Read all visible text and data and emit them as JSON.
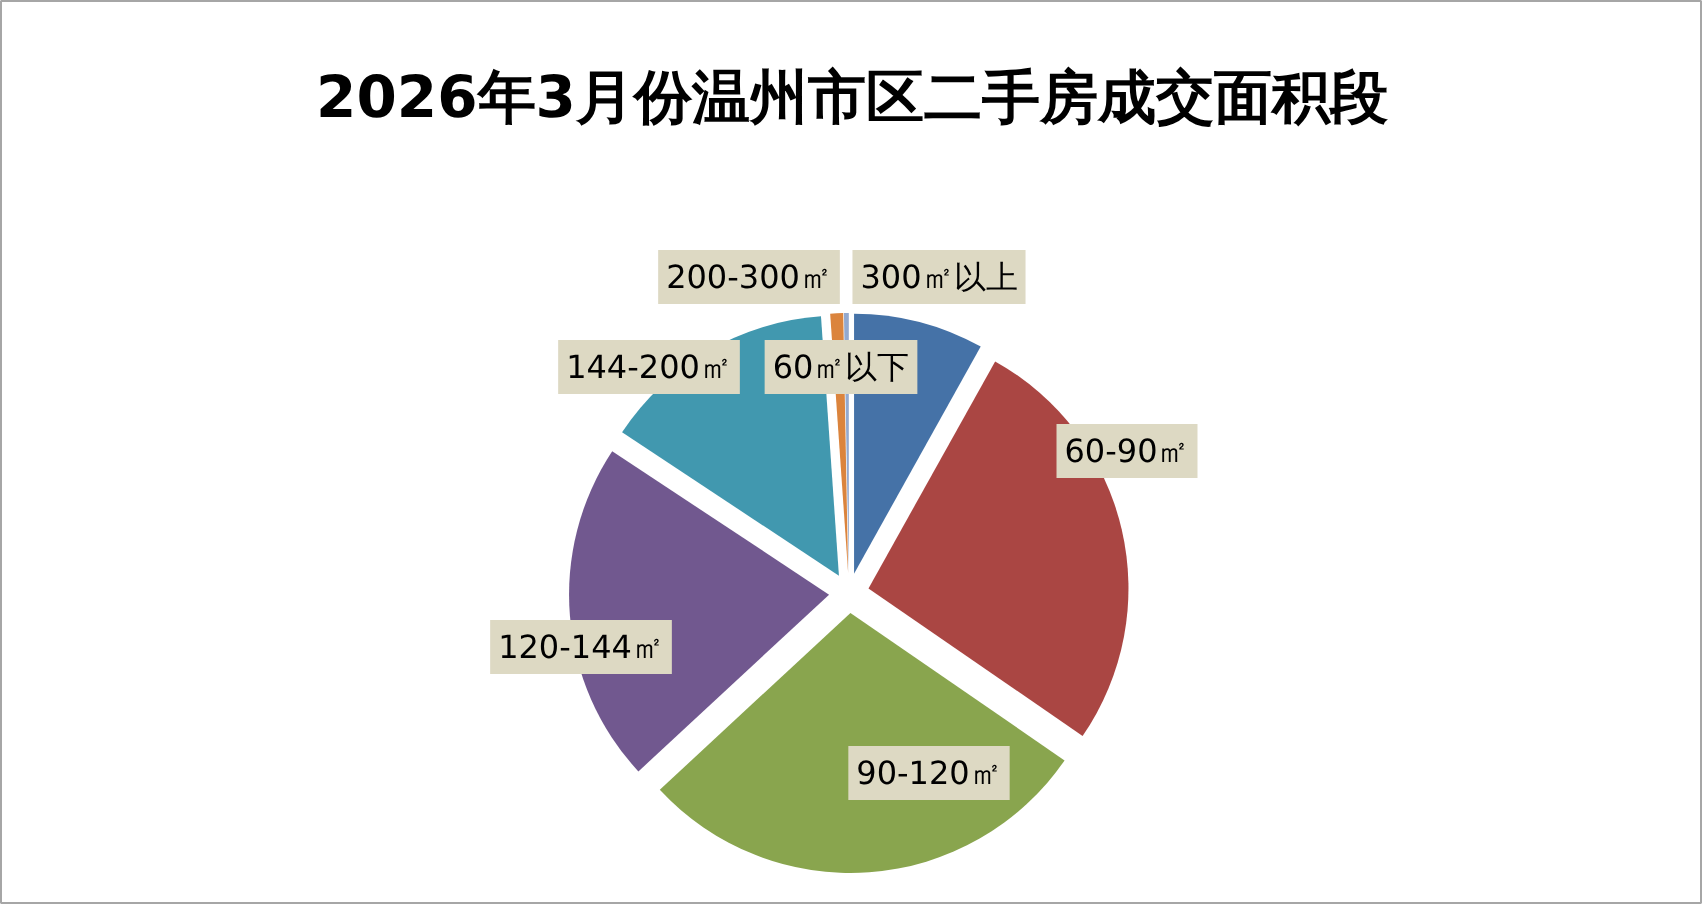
{
  "chart_data": {
    "type": "pie",
    "title": "2026年3月份温州市区二手房成交面积段",
    "categories": [
      "60㎡以下",
      "60-90㎡",
      "90-120㎡",
      "120-144㎡",
      "144-200㎡",
      "200-300㎡",
      "300㎡以上"
    ],
    "values": [
      8.1,
      26.5,
      28.5,
      21.2,
      14.6,
      0.8,
      0.3
    ],
    "colors": [
      "#4572a7",
      "#aa4643",
      "#89a54e",
      "#71588f",
      "#4198af",
      "#db843d",
      "#93a9cf"
    ]
  }
}
